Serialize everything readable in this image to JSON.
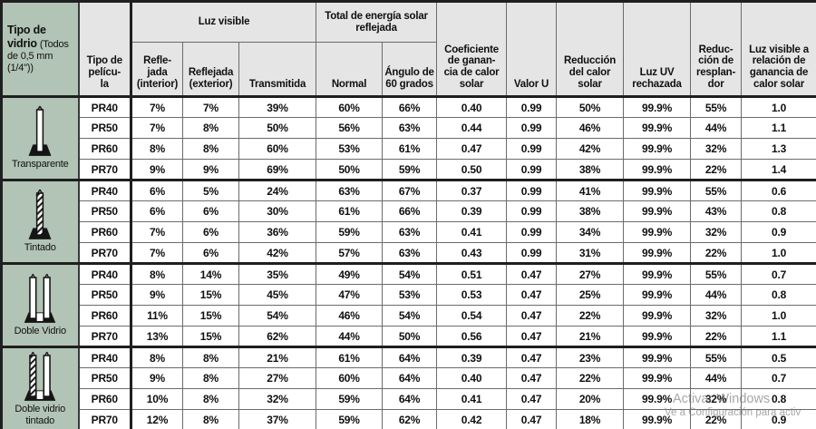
{
  "colors": {
    "glass_column_bg": "#b2c4b5",
    "header_bg": "#e5e5e5",
    "border_dark": "#1f1f1f",
    "text": "#101010"
  },
  "table": {
    "header": {
      "glass_title": "Tipo de vidrio",
      "glass_note": "(Todos de 0,5 mm (1/4\"))",
      "film": "Tipo de\npelícu-\nla",
      "luz_visible": "Luz visible",
      "refl_int": "Refle-\njada\n(interior)",
      "refl_ext": "Reflejada\n(exterior)",
      "transmitida": "Transmitida",
      "total_energia": "Total de energía solar\nreflejada",
      "normal": "Normal",
      "angulo": "Ángulo de\n60 grados",
      "coef": "Coeficiente\nde ganan-\ncia de calor\nsolar",
      "valor_u": "Valor U",
      "reduccion_calor": "Reducción\ndel calor\nsolar",
      "luz_uv": "Luz UV\nrechazada",
      "reduccion_resplandor": "Reduc-\nción de\nresplan-\ndor",
      "luz_visible_relacion": "Luz visible a\nrelación de\nganancia de\ncalor solar"
    },
    "groups": [
      {
        "glass": "Transparente",
        "icon": "single-clear-pane",
        "rows": [
          {
            "film": "PR40",
            "values": [
              "7%",
              "7%",
              "39%",
              "60%",
              "66%",
              "0.40",
              "0.99",
              "50%",
              "99.9%",
              "55%",
              "1.0"
            ]
          },
          {
            "film": "PR50",
            "values": [
              "7%",
              "8%",
              "50%",
              "56%",
              "63%",
              "0.44",
              "0.99",
              "46%",
              "99.9%",
              "44%",
              "1.1"
            ]
          },
          {
            "film": "PR60",
            "values": [
              "8%",
              "8%",
              "60%",
              "53%",
              "61%",
              "0.47",
              "0.99",
              "42%",
              "99.9%",
              "32%",
              "1.3"
            ]
          },
          {
            "film": "PR70",
            "values": [
              "9%",
              "9%",
              "69%",
              "50%",
              "59%",
              "0.50",
              "0.99",
              "38%",
              "99.9%",
              "22%",
              "1.4"
            ]
          }
        ]
      },
      {
        "glass": "Tintado",
        "icon": "single-tinted-pane",
        "rows": [
          {
            "film": "PR40",
            "values": [
              "6%",
              "5%",
              "24%",
              "63%",
              "67%",
              "0.37",
              "0.99",
              "41%",
              "99.9%",
              "55%",
              "0.6"
            ]
          },
          {
            "film": "PR50",
            "values": [
              "6%",
              "6%",
              "30%",
              "61%",
              "66%",
              "0.39",
              "0.99",
              "38%",
              "99.9%",
              "43%",
              "0.8"
            ]
          },
          {
            "film": "PR60",
            "values": [
              "7%",
              "6%",
              "36%",
              "59%",
              "63%",
              "0.41",
              "0.99",
              "34%",
              "99.9%",
              "32%",
              "0.9"
            ]
          },
          {
            "film": "PR70",
            "values": [
              "7%",
              "6%",
              "42%",
              "57%",
              "63%",
              "0.43",
              "0.99",
              "31%",
              "99.9%",
              "22%",
              "1.0"
            ]
          }
        ]
      },
      {
        "glass": "Doble Vidrio",
        "icon": "double-clear-pane",
        "rows": [
          {
            "film": "PR40",
            "values": [
              "8%",
              "14%",
              "35%",
              "49%",
              "54%",
              "0.51",
              "0.47",
              "27%",
              "99.9%",
              "55%",
              "0.7"
            ]
          },
          {
            "film": "PR50",
            "values": [
              "9%",
              "15%",
              "45%",
              "47%",
              "53%",
              "0.53",
              "0.47",
              "25%",
              "99.9%",
              "44%",
              "0.8"
            ]
          },
          {
            "film": "PR60",
            "values": [
              "11%",
              "15%",
              "54%",
              "46%",
              "54%",
              "0.54",
              "0.47",
              "22%",
              "99.9%",
              "32%",
              "1.0"
            ]
          },
          {
            "film": "PR70",
            "values": [
              "13%",
              "15%",
              "62%",
              "44%",
              "50%",
              "0.56",
              "0.47",
              "21%",
              "99.9%",
              "22%",
              "1.1"
            ]
          }
        ]
      },
      {
        "glass": "Doble vidrio\ntintado",
        "icon": "double-tinted-pane",
        "rows": [
          {
            "film": "PR40",
            "values": [
              "8%",
              "8%",
              "21%",
              "61%",
              "64%",
              "0.39",
              "0.47",
              "23%",
              "99.9%",
              "55%",
              "0.5"
            ]
          },
          {
            "film": "PR50",
            "values": [
              "9%",
              "8%",
              "27%",
              "60%",
              "64%",
              "0.40",
              "0.47",
              "22%",
              "99.9%",
              "44%",
              "0.7"
            ]
          },
          {
            "film": "PR60",
            "values": [
              "10%",
              "8%",
              "32%",
              "59%",
              "64%",
              "0.41",
              "0.47",
              "20%",
              "99.9%",
              "32%",
              "0.8"
            ]
          },
          {
            "film": "PR70",
            "values": [
              "12%",
              "8%",
              "37%",
              "59%",
              "62%",
              "0.42",
              "0.47",
              "18%",
              "99.9%",
              "22%",
              "0.9"
            ]
          }
        ]
      }
    ]
  },
  "watermark": {
    "line1": "Activar Windows",
    "line2": "Ve a Configuración para activ"
  }
}
